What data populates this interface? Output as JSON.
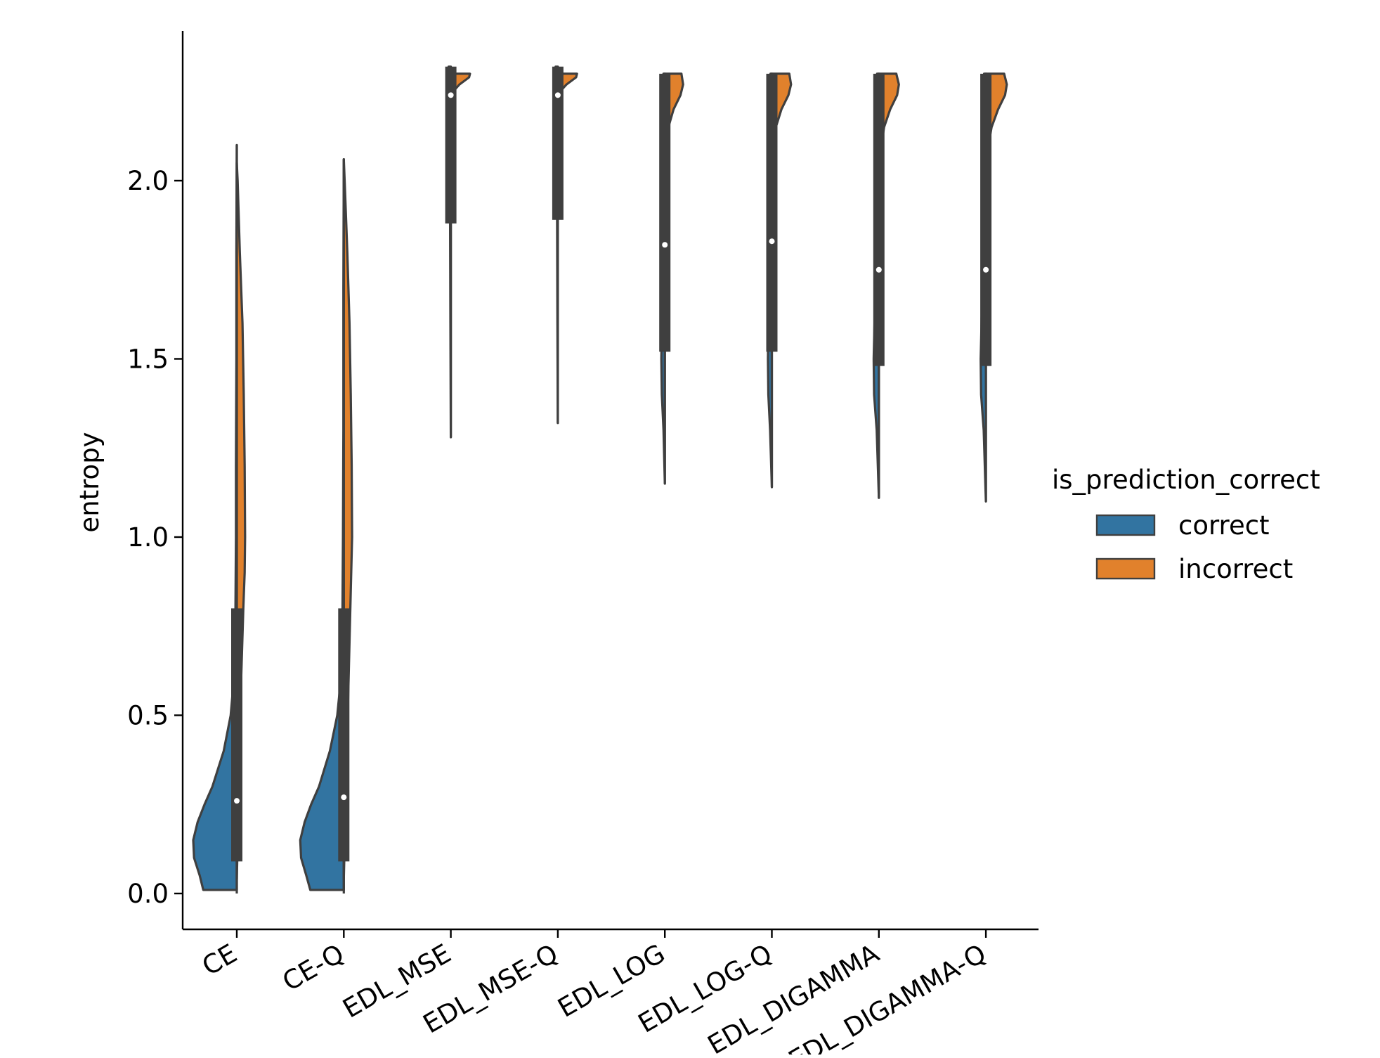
{
  "chart_data": {
    "type": "violin",
    "split": true,
    "ylabel": "entropy",
    "xlabel": "",
    "ylim": [
      -0.1,
      2.41
    ],
    "yticks": [
      0.0,
      0.5,
      1.0,
      1.5,
      2.0
    ],
    "ytick_labels": [
      "0.0",
      "0.5",
      "1.0",
      "1.5",
      "2.0"
    ],
    "categories": [
      "CE",
      "CE-Q",
      "EDL_MSE",
      "EDL_MSE-Q",
      "EDL_LOG",
      "EDL_LOG-Q",
      "EDL_DIGAMMA",
      "EDL_DIGAMMA-Q"
    ],
    "legend": {
      "title": "is_prediction_correct",
      "placement": "center-right",
      "entries": [
        {
          "label": "correct",
          "color": "#3274a1"
        },
        {
          "label": "incorrect",
          "color": "#e1812c"
        }
      ]
    },
    "series": [
      {
        "name": "correct",
        "color": "#3274a1"
      },
      {
        "name": "incorrect",
        "color": "#e1812c"
      }
    ],
    "violins": [
      {
        "category": "CE",
        "box": {
          "q1": 0.09,
          "median": 0.26,
          "q3": 0.8,
          "whisker_low": 0.0,
          "whisker_high": 2.1
        },
        "correct": {
          "points": [
            [
              0.01,
              0.77
            ],
            [
              0.05,
              0.85
            ],
            [
              0.1,
              0.98
            ],
            [
              0.15,
              1.0
            ],
            [
              0.2,
              0.9
            ],
            [
              0.25,
              0.74
            ],
            [
              0.3,
              0.56
            ],
            [
              0.4,
              0.3
            ],
            [
              0.5,
              0.14
            ],
            [
              0.6,
              0.07
            ],
            [
              0.8,
              0.03
            ],
            [
              1.0,
              0.02
            ],
            [
              1.2,
              0.02
            ],
            [
              1.5,
              0.01
            ],
            [
              1.8,
              0.01
            ],
            [
              2.1,
              0.0
            ]
          ]
        },
        "incorrect": {
          "points": [
            [
              0.04,
              0.0
            ],
            [
              0.2,
              0.03
            ],
            [
              0.4,
              0.07
            ],
            [
              0.6,
              0.1
            ],
            [
              0.8,
              0.15
            ],
            [
              0.9,
              0.18
            ],
            [
              1.0,
              0.19
            ],
            [
              1.2,
              0.18
            ],
            [
              1.4,
              0.16
            ],
            [
              1.6,
              0.13
            ],
            [
              1.8,
              0.07
            ],
            [
              2.0,
              0.02
            ],
            [
              2.05,
              0.0
            ]
          ]
        }
      },
      {
        "category": "CE-Q",
        "box": {
          "q1": 0.09,
          "median": 0.27,
          "q3": 0.8,
          "whisker_low": 0.0,
          "whisker_high": 2.06
        },
        "correct": {
          "points": [
            [
              0.01,
              0.77
            ],
            [
              0.05,
              0.86
            ],
            [
              0.1,
              0.98
            ],
            [
              0.15,
              1.0
            ],
            [
              0.2,
              0.9
            ],
            [
              0.25,
              0.75
            ],
            [
              0.3,
              0.57
            ],
            [
              0.4,
              0.32
            ],
            [
              0.5,
              0.15
            ],
            [
              0.6,
              0.07
            ],
            [
              0.8,
              0.03
            ],
            [
              1.0,
              0.02
            ],
            [
              1.3,
              0.01
            ],
            [
              1.7,
              0.01
            ],
            [
              2.06,
              0.0
            ]
          ]
        },
        "incorrect": {
          "points": [
            [
              0.04,
              0.0
            ],
            [
              0.2,
              0.03
            ],
            [
              0.4,
              0.07
            ],
            [
              0.6,
              0.11
            ],
            [
              0.8,
              0.15
            ],
            [
              1.0,
              0.19
            ],
            [
              1.2,
              0.18
            ],
            [
              1.4,
              0.16
            ],
            [
              1.6,
              0.13
            ],
            [
              1.8,
              0.08
            ],
            [
              2.0,
              0.02
            ],
            [
              2.06,
              0.0
            ]
          ]
        }
      },
      {
        "category": "EDL_MSE",
        "box": {
          "q1": 1.88,
          "median": 2.24,
          "q3": 2.32,
          "whisker_low": 1.28,
          "whisker_high": 2.32
        },
        "correct": {
          "points": [
            [
              1.28,
              0.0
            ],
            [
              1.6,
              0.01
            ],
            [
              2.0,
              0.02
            ],
            [
              2.2,
              0.03
            ],
            [
              2.3,
              0.04
            ],
            [
              2.32,
              0.05
            ]
          ]
        },
        "incorrect": {
          "points": [
            [
              2.22,
              0.0
            ],
            [
              2.25,
              0.05
            ],
            [
              2.27,
              0.2
            ],
            [
              2.29,
              0.42
            ],
            [
              2.3,
              0.44
            ]
          ]
        }
      },
      {
        "category": "EDL_MSE-Q",
        "box": {
          "q1": 1.89,
          "median": 2.24,
          "q3": 2.32,
          "whisker_low": 1.32,
          "whisker_high": 2.32
        },
        "correct": {
          "points": [
            [
              1.32,
              0.0
            ],
            [
              1.6,
              0.01
            ],
            [
              2.0,
              0.02
            ],
            [
              2.2,
              0.03
            ],
            [
              2.3,
              0.04
            ],
            [
              2.32,
              0.05
            ]
          ]
        },
        "incorrect": {
          "points": [
            [
              2.22,
              0.0
            ],
            [
              2.25,
              0.05
            ],
            [
              2.27,
              0.2
            ],
            [
              2.29,
              0.42
            ],
            [
              2.3,
              0.44
            ]
          ]
        }
      },
      {
        "category": "EDL_LOG",
        "box": {
          "q1": 1.52,
          "median": 1.82,
          "q3": 2.3,
          "whisker_low": 1.15,
          "whisker_high": 2.3
        },
        "correct": {
          "points": [
            [
              1.15,
              0.0
            ],
            [
              1.3,
              0.03
            ],
            [
              1.4,
              0.07
            ],
            [
              1.5,
              0.08
            ],
            [
              1.6,
              0.07
            ],
            [
              1.8,
              0.05
            ],
            [
              2.0,
              0.04
            ],
            [
              2.2,
              0.03
            ],
            [
              2.3,
              0.03
            ]
          ]
        },
        "incorrect": {
          "points": [
            [
              1.7,
              0.0
            ],
            [
              2.0,
              0.02
            ],
            [
              2.1,
              0.04
            ],
            [
              2.15,
              0.08
            ],
            [
              2.2,
              0.2
            ],
            [
              2.24,
              0.36
            ],
            [
              2.27,
              0.42
            ],
            [
              2.3,
              0.38
            ]
          ]
        }
      },
      {
        "category": "EDL_LOG-Q",
        "box": {
          "q1": 1.52,
          "median": 1.83,
          "q3": 2.3,
          "whisker_low": 1.14,
          "whisker_high": 2.3
        },
        "correct": {
          "points": [
            [
              1.14,
              0.0
            ],
            [
              1.3,
              0.04
            ],
            [
              1.4,
              0.08
            ],
            [
              1.5,
              0.09
            ],
            [
              1.6,
              0.08
            ],
            [
              1.8,
              0.05
            ],
            [
              2.0,
              0.04
            ],
            [
              2.2,
              0.03
            ],
            [
              2.3,
              0.03
            ]
          ]
        },
        "incorrect": {
          "points": [
            [
              1.7,
              0.0
            ],
            [
              2.0,
              0.02
            ],
            [
              2.1,
              0.04
            ],
            [
              2.15,
              0.09
            ],
            [
              2.2,
              0.22
            ],
            [
              2.24,
              0.38
            ],
            [
              2.27,
              0.44
            ],
            [
              2.3,
              0.4
            ]
          ]
        }
      },
      {
        "category": "EDL_DIGAMMA",
        "box": {
          "q1": 1.48,
          "median": 1.75,
          "q3": 2.3,
          "whisker_low": 1.11,
          "whisker_high": 2.3
        },
        "correct": {
          "points": [
            [
              1.11,
              0.0
            ],
            [
              1.3,
              0.05
            ],
            [
              1.4,
              0.11
            ],
            [
              1.5,
              0.12
            ],
            [
              1.6,
              0.1
            ],
            [
              1.8,
              0.07
            ],
            [
              2.0,
              0.05
            ],
            [
              2.2,
              0.04
            ],
            [
              2.3,
              0.04
            ]
          ]
        },
        "incorrect": {
          "points": [
            [
              1.8,
              0.0
            ],
            [
              2.0,
              0.03
            ],
            [
              2.1,
              0.06
            ],
            [
              2.15,
              0.12
            ],
            [
              2.2,
              0.26
            ],
            [
              2.24,
              0.42
            ],
            [
              2.27,
              0.46
            ],
            [
              2.3,
              0.4
            ]
          ]
        }
      },
      {
        "category": "EDL_DIGAMMA-Q",
        "box": {
          "q1": 1.48,
          "median": 1.75,
          "q3": 2.3,
          "whisker_low": 1.1,
          "whisker_high": 2.3
        },
        "correct": {
          "points": [
            [
              1.1,
              0.0
            ],
            [
              1.3,
              0.05
            ],
            [
              1.4,
              0.11
            ],
            [
              1.5,
              0.12
            ],
            [
              1.6,
              0.1
            ],
            [
              1.8,
              0.07
            ],
            [
              2.0,
              0.05
            ],
            [
              2.2,
              0.04
            ],
            [
              2.3,
              0.04
            ]
          ]
        },
        "incorrect": {
          "points": [
            [
              1.8,
              0.0
            ],
            [
              2.0,
              0.03
            ],
            [
              2.1,
              0.06
            ],
            [
              2.15,
              0.13
            ],
            [
              2.2,
              0.28
            ],
            [
              2.24,
              0.44
            ],
            [
              2.27,
              0.48
            ],
            [
              2.3,
              0.42
            ]
          ]
        }
      }
    ]
  }
}
